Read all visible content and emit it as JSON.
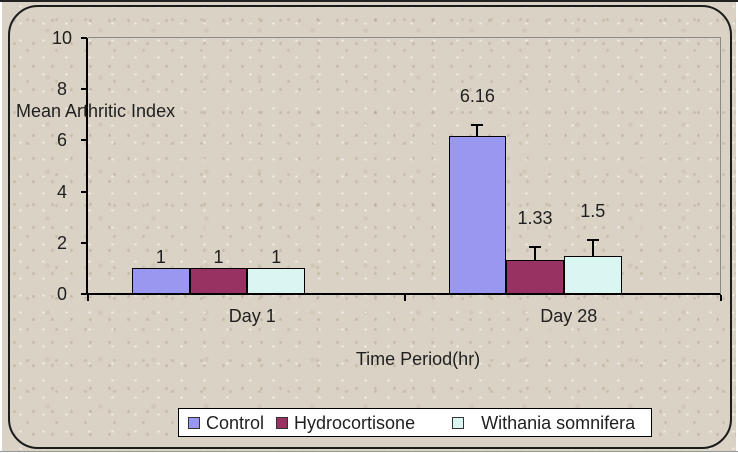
{
  "chart": {
    "ylabel": "Mean Arthritic Index",
    "xlabel": "Time Period(hr)"
  },
  "chart_data": {
    "type": "bar",
    "title": "",
    "categories": [
      "Day 1",
      "Day 28"
    ],
    "series": [
      {
        "name": "Control",
        "color": "#9a97f0",
        "values": [
          1,
          6.16
        ],
        "errors_upper": [
          0,
          0.43
        ]
      },
      {
        "name": "Hydrocortisone",
        "color": "#983263",
        "values": [
          1,
          1.33
        ],
        "errors_upper": [
          0,
          0.51
        ]
      },
      {
        "name": "Withania somnifera",
        "color": "#d9f6f2",
        "values": [
          1,
          1.5
        ],
        "errors_upper": [
          0,
          0.59
        ]
      }
    ],
    "value_labels": [
      [
        "1",
        "1",
        "1"
      ],
      [
        "6.16",
        "1.33",
        "1.5"
      ]
    ],
    "ylabel": "Mean Arthritic Index",
    "xlabel": "Time Period(hr)",
    "ylim": [
      0,
      10
    ],
    "yticks": [
      0,
      2,
      4,
      6,
      8,
      10
    ],
    "legend_position": "bottom",
    "grid": false,
    "colors": {
      "axis": "#000000",
      "plot_border": "#8a8a8a",
      "background": "#dad2c4",
      "legend_background": "#ffffff",
      "text": "#1f1f1f"
    }
  }
}
